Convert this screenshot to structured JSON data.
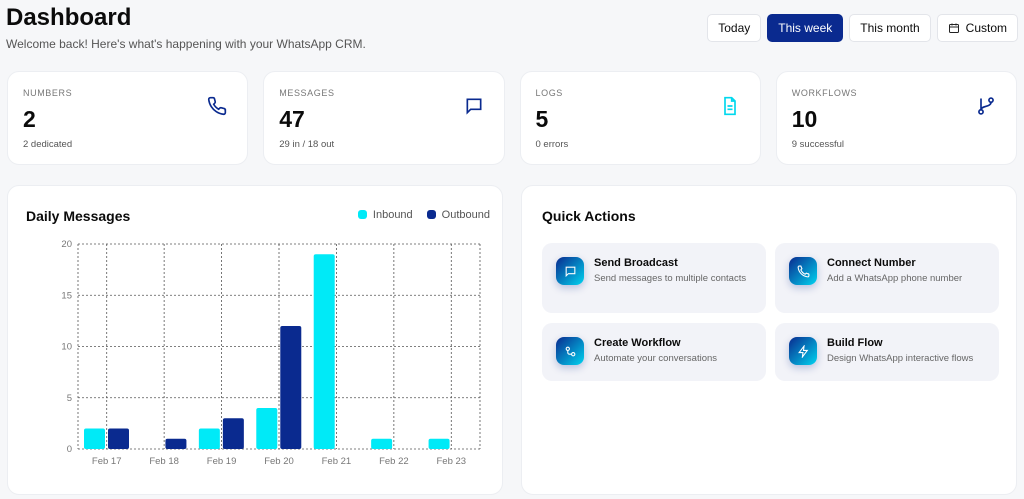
{
  "header": {
    "title": "Dashboard",
    "subtitle": "Welcome back! Here's what's happening with your WhatsApp CRM."
  },
  "ranges": [
    {
      "label": "Today",
      "active": false
    },
    {
      "label": "This week",
      "active": true
    },
    {
      "label": "This month",
      "active": false
    },
    {
      "label": "Custom",
      "active": false,
      "icon": "calendar-icon"
    }
  ],
  "stats": [
    {
      "label": "NUMBERS",
      "value": "2",
      "sub": "2 dedicated",
      "icon": "phone-icon",
      "color": "#0a2a8f"
    },
    {
      "label": "MESSAGES",
      "value": "47",
      "sub": "29 in / 18 out",
      "icon": "message-icon",
      "color": "#0a2a8f"
    },
    {
      "label": "LOGS",
      "value": "5",
      "sub": "0 errors",
      "icon": "file-icon",
      "color": "#00e5f5"
    },
    {
      "label": "WORKFLOWS",
      "value": "10",
      "sub": "9 successful",
      "icon": "git-branch-icon",
      "color": "#0a2a8f"
    }
  ],
  "chart_data": {
    "type": "bar",
    "title": "Daily Messages",
    "categories": [
      "Feb 17",
      "Feb 18",
      "Feb 19",
      "Feb 20",
      "Feb 21",
      "Feb 22",
      "Feb 23"
    ],
    "series": [
      {
        "name": "Inbound",
        "color": "#00eaf7",
        "values": [
          2,
          0,
          2,
          4,
          19,
          1,
          1
        ]
      },
      {
        "name": "Outbound",
        "color": "#0a2a8f",
        "values": [
          2,
          1,
          3,
          12,
          0,
          0,
          0
        ]
      }
    ],
    "ylim": [
      0,
      20
    ],
    "yticks": [
      "0",
      "5",
      "10",
      "15",
      "20"
    ],
    "grid": true,
    "legend": "top-right"
  },
  "quick": {
    "title": "Quick Actions",
    "items": [
      {
        "title": "Send Broadcast",
        "desc": "Send messages to multiple contacts",
        "icon": "message-icon"
      },
      {
        "title": "Connect Number",
        "desc": "Add a WhatsApp phone number",
        "icon": "phone-icon"
      },
      {
        "title": "Create Workflow",
        "desc": "Automate your conversations",
        "icon": "workflow-icon"
      },
      {
        "title": "Build Flow",
        "desc": "Design WhatsApp interactive flows",
        "icon": "zap-icon"
      }
    ]
  }
}
